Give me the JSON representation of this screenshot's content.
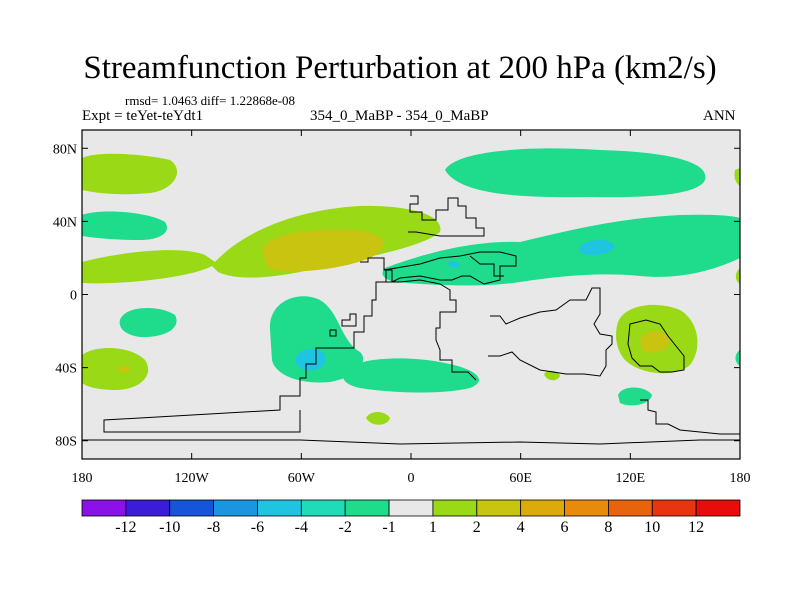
{
  "title": "Streamfunction Perturbation at 200 hPa (km2/s)",
  "stats": "rmsd= 1.0463 diff= 1.22868e-08",
  "expt": "Expt = teYet-teYdt1",
  "case": "354_0_MaBP - 354_0_MaBP",
  "season": "ANN",
  "chart_data": {
    "type": "heatmap",
    "projection": "cylindrical equidistant",
    "variable": "Streamfunction Perturbation",
    "level": "200 hPa",
    "units": "km2/s",
    "x_range": [
      -180,
      180
    ],
    "y_range": [
      -90,
      90
    ],
    "x_ticks": [
      {
        "value": -180,
        "label": "180"
      },
      {
        "value": -120,
        "label": "120W"
      },
      {
        "value": -60,
        "label": "60W"
      },
      {
        "value": 0,
        "label": "0"
      },
      {
        "value": 60,
        "label": "60E"
      },
      {
        "value": 120,
        "label": "120E"
      },
      {
        "value": 180,
        "label": "180"
      }
    ],
    "y_ticks": [
      {
        "value": 80,
        "label": "80N"
      },
      {
        "value": 40,
        "label": "40N"
      },
      {
        "value": 0,
        "label": "0"
      },
      {
        "value": -40,
        "label": "40S"
      },
      {
        "value": -80,
        "label": "80S"
      }
    ],
    "colorbar": {
      "colors": [
        "#8A12E6",
        "#3B1CD9",
        "#1655D9",
        "#1A96E0",
        "#1FC4E0",
        "#1FDBB8",
        "#1FDB8C",
        "#E8E8E8",
        "#99D916",
        "#C8C40F",
        "#DCAA0A",
        "#E88A0A",
        "#E8640A",
        "#E8350F",
        "#E80C0C"
      ],
      "labels": [
        "-12",
        "-10",
        "-8",
        "-6",
        "-4",
        "-2",
        "-1",
        "1",
        "2",
        "4",
        "6",
        "8",
        "10",
        "12"
      ]
    },
    "features": [
      {
        "level": 2,
        "lon": -175,
        "lat": 72
      },
      {
        "level": -1,
        "lon": -160,
        "lat": 37
      },
      {
        "level": 2,
        "lon": -145,
        "lat": 15
      },
      {
        "level": 2,
        "lon": -75,
        "lat": 28
      },
      {
        "level": 4,
        "lon": -70,
        "lat": 25
      },
      {
        "level": -1,
        "lon": -145,
        "lat": -15
      },
      {
        "level": -1,
        "lon": -70,
        "lat": -30
      },
      {
        "level": -2,
        "lon": -62,
        "lat": -35
      },
      {
        "level": -1,
        "lon": 20,
        "lat": -40
      },
      {
        "level": 2,
        "lon": -170,
        "lat": -40
      },
      {
        "level": 2,
        "lon": -20,
        "lat": -67
      },
      {
        "level": -1,
        "lon": 70,
        "lat": 67
      },
      {
        "level": -1,
        "lon": 90,
        "lat": 24
      },
      {
        "level": -2,
        "lon": 100,
        "lat": 30
      },
      {
        "level": 2,
        "lon": 138,
        "lat": -25
      },
      {
        "level": 4,
        "lon": 138,
        "lat": -27
      },
      {
        "level": -1,
        "lon": 125,
        "lat": -55
      },
      {
        "level": 2,
        "lon": 78,
        "lat": -43
      }
    ]
  }
}
